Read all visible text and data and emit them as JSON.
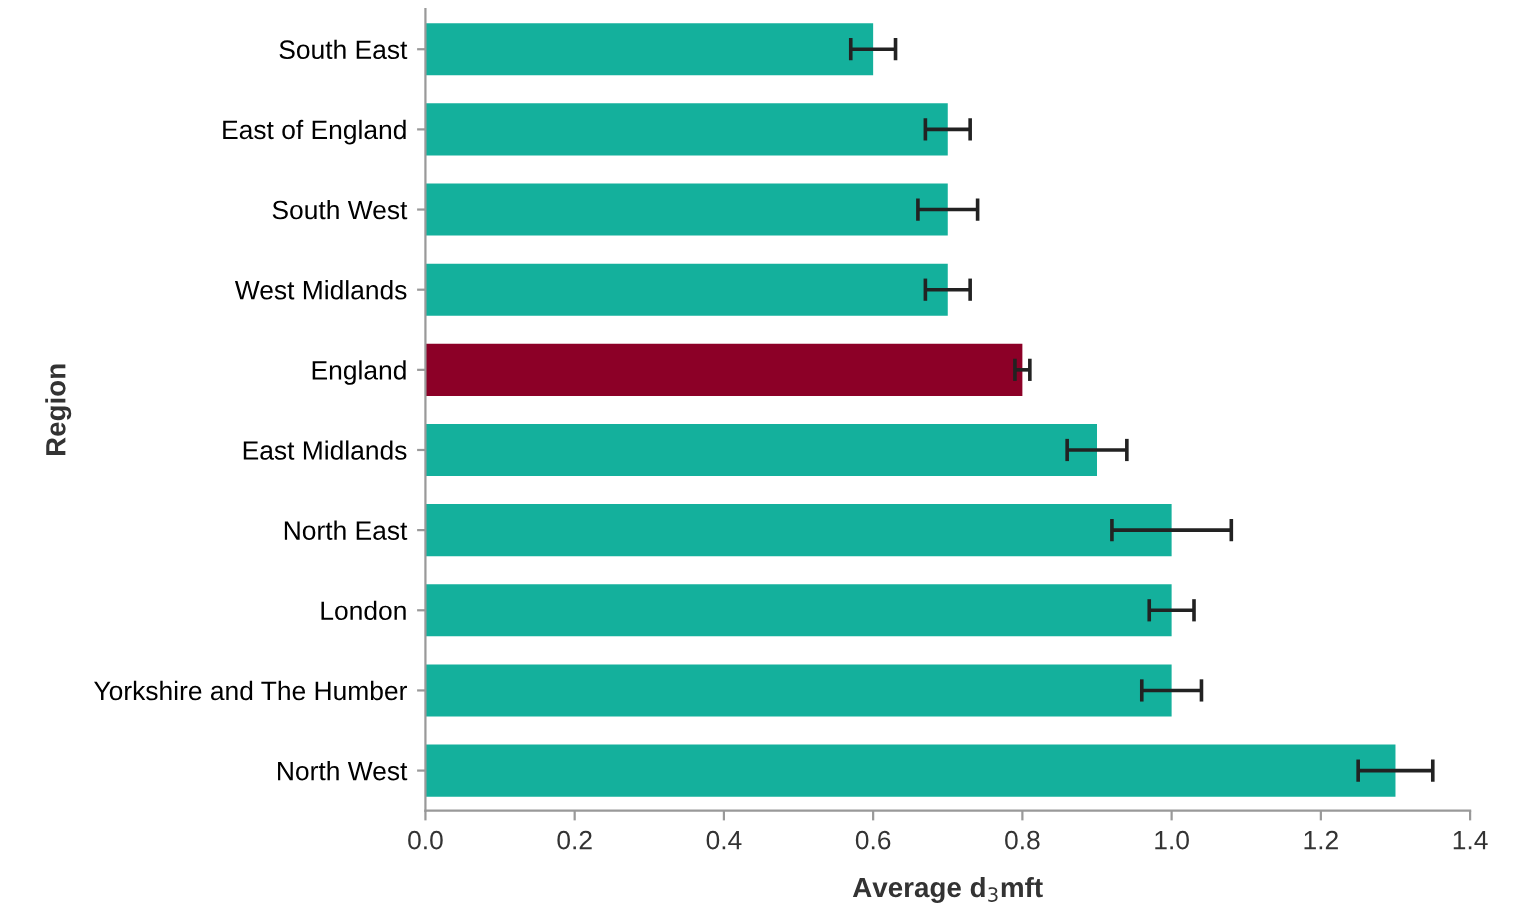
{
  "chart_data": {
    "type": "bar",
    "orientation": "horizontal",
    "xlabel": "Average d$_{3}$mft",
    "ylabel": "Region",
    "categories": [
      "South East",
      "East of England",
      "South West",
      "West Midlands",
      "England",
      "East Midlands",
      "North East",
      "London",
      "Yorkshire and The Humber",
      "North West"
    ],
    "values": [
      0.6,
      0.7,
      0.7,
      0.7,
      0.8,
      0.9,
      1.0,
      1.0,
      1.0,
      1.3
    ],
    "errors": [
      0.03,
      0.03,
      0.04,
      0.03,
      0.01,
      0.04,
      0.08,
      0.03,
      0.04,
      0.05
    ],
    "colors": [
      "#14b09c",
      "#14b09c",
      "#14b09c",
      "#14b09c",
      "#8c0027",
      "#14b09c",
      "#14b09c",
      "#14b09c",
      "#14b09c",
      "#14b09c"
    ],
    "xlim": [
      0,
      1.4
    ],
    "xticks": [
      {
        "value": 0,
        "label": "0.0"
      },
      0.2,
      0.4,
      0.6,
      0.8,
      {
        "value": 1,
        "label": "1.0"
      },
      1.2,
      1.4
    ],
    "grid": false,
    "legend": false
  }
}
